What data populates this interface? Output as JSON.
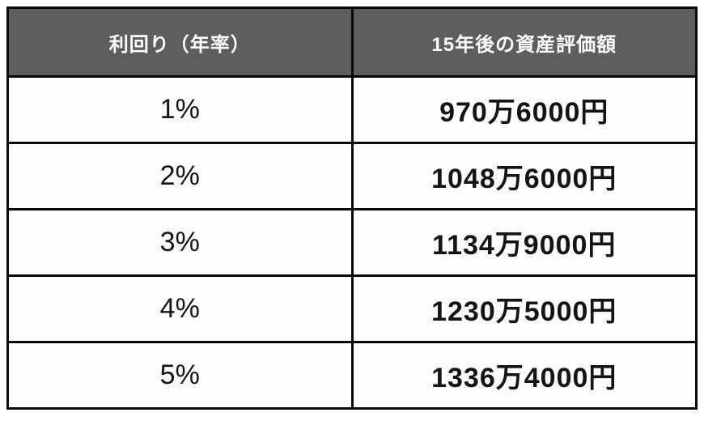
{
  "chart_data": {
    "type": "table",
    "title": "",
    "columns": [
      "利回り（年率）",
      "15年後の資産評価額"
    ],
    "rows": [
      [
        "1%",
        "970万6000円"
      ],
      [
        "2%",
        "1048万6000円"
      ],
      [
        "3%",
        "1134万9000円"
      ],
      [
        "4%",
        "1230万5000円"
      ],
      [
        "5%",
        "1336万4000円"
      ]
    ]
  },
  "colors": {
    "header_bg": "#5e5e5e",
    "header_text": "#ffffff",
    "border": "#0a0a0a",
    "cell_bg": "#fdfdfd",
    "cell_text": "#141414"
  }
}
